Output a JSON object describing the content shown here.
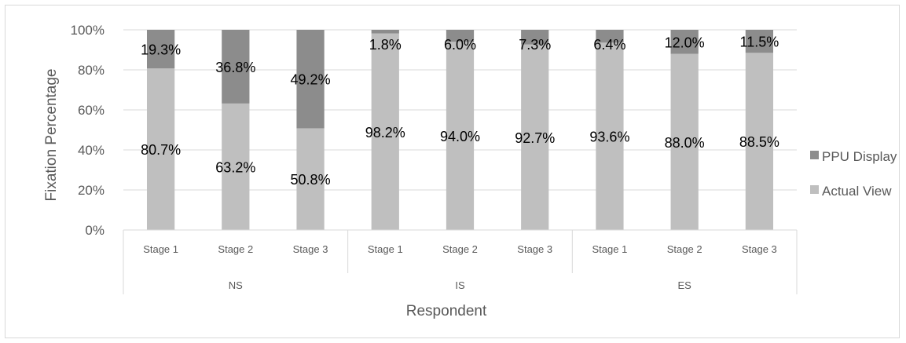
{
  "chart_data": {
    "type": "bar",
    "stacked": true,
    "percent_stacked": true,
    "groups": [
      {
        "name": "NS",
        "categories": [
          "Stage 1",
          "Stage 2",
          "Stage 3"
        ]
      },
      {
        "name": "IS",
        "categories": [
          "Stage 1",
          "Stage 2",
          "Stage 3"
        ]
      },
      {
        "name": "ES",
        "categories": [
          "Stage 1",
          "Stage 2",
          "Stage 3"
        ]
      }
    ],
    "series": [
      {
        "name": "Actual View",
        "color": "#bfbfbf",
        "values": [
          80.7,
          63.2,
          50.8,
          98.2,
          94.0,
          92.7,
          93.6,
          88.0,
          88.5
        ],
        "labels": [
          "80.7%",
          "63.2%",
          "50.8%",
          "98.2%",
          "94.0%",
          "92.7%",
          "93.6%",
          "88.0%",
          "88.5%"
        ]
      },
      {
        "name": "PPU Display",
        "color": "#8c8c8c",
        "values": [
          19.3,
          36.8,
          49.2,
          1.8,
          6.0,
          7.3,
          6.4,
          12.0,
          11.5
        ],
        "labels": [
          "19.3%",
          "36.8%",
          "49.2%",
          "1.8%",
          "6.0%",
          "7.3%",
          "6.4%",
          "12.0%",
          "11.5%"
        ]
      }
    ],
    "xlabel": "Respondent",
    "ylabel": "Fixation Percentage",
    "ylim": [
      0,
      100
    ],
    "yticks": [
      "0%",
      "20%",
      "40%",
      "60%",
      "80%",
      "100%"
    ],
    "grid": true,
    "legend": {
      "position": "right",
      "order": [
        "PPU Display",
        "Actual View"
      ]
    }
  }
}
